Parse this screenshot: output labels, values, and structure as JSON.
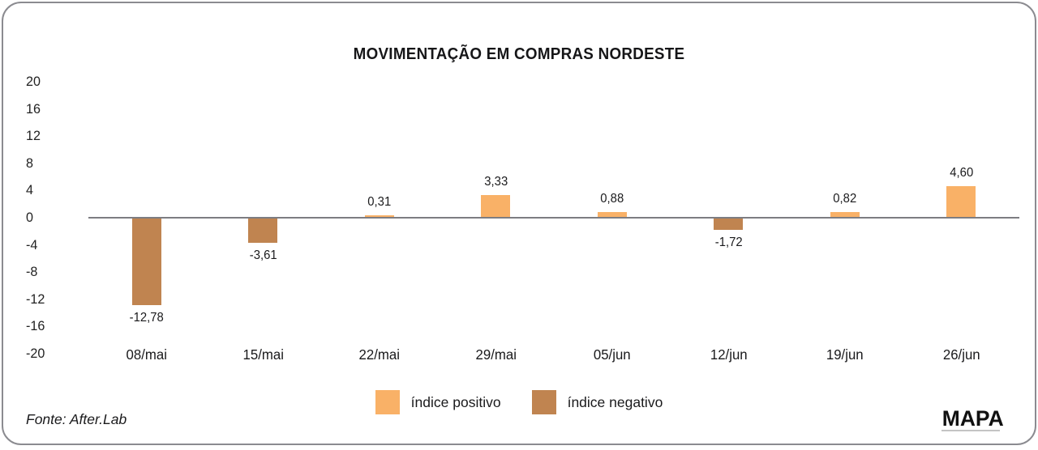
{
  "chart_data": {
    "type": "bar",
    "title": "MOVIMENTAÇÃO EM COMPRAS NORDESTE",
    "categories": [
      "08/mai",
      "15/mai",
      "22/mai",
      "29/mai",
      "05/jun",
      "12/jun",
      "19/jun",
      "26/jun"
    ],
    "values": [
      -12.78,
      -3.61,
      0.31,
      3.33,
      0.88,
      -1.72,
      0.82,
      4.6
    ],
    "value_labels": [
      "-12,78",
      "-3,61",
      "0,31",
      "3,33",
      "0,88",
      "-1,72",
      "0,82",
      "4,60"
    ],
    "xlabel": "",
    "ylabel": "",
    "ylim": [
      -20,
      20
    ],
    "yticks": [
      20,
      16,
      12,
      8,
      4,
      0,
      -4,
      -8,
      -12,
      -16,
      -20
    ],
    "grid": false,
    "legend_position": "bottom-center",
    "legend": [
      {
        "label": "índice positivo",
        "color": "#F9B167"
      },
      {
        "label": "índice negativo",
        "color": "#C08450"
      }
    ]
  },
  "footer": {
    "source": "Fonte: After.Lab",
    "brand": "MAPA"
  },
  "colors": {
    "positive": "#F9B167",
    "negative": "#C08450",
    "axis": "#7D7D82",
    "border": "#8B8B90",
    "text": "#1D1D1F"
  }
}
